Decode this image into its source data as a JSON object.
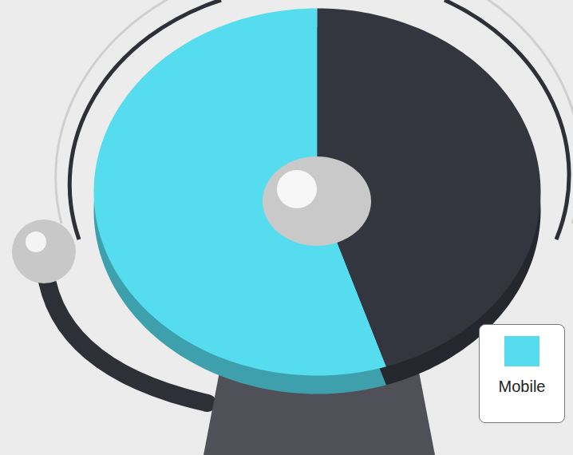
{
  "chart_data": {
    "type": "pie",
    "categories": [
      "Mobile",
      null
    ],
    "values": [
      55,
      45
    ],
    "colors": [
      "#56dcef",
      "#33363f"
    ],
    "legend": "bottom-right"
  }
}
